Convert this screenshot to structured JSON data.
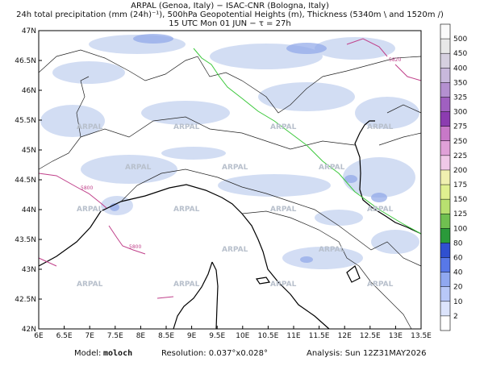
{
  "header": {
    "lines": [
      "ARPAL (Genoa, Italy)  −  ISAC-CNR (Bologna, Italy)",
      "24h total precipitation (mm (24h)⁻¹), 500hPa Geopotential Heights (m), Thickness (5340m \\ and 1520m /)",
      "15 UTC Mon 01 JUN  −  τ = 27h"
    ]
  },
  "axes": {
    "lon": [
      {
        "value": 6,
        "label": "6E"
      },
      {
        "value": 6.5,
        "label": "6.5E"
      },
      {
        "value": 7,
        "label": "7E"
      },
      {
        "value": 7.5,
        "label": "7.5E"
      },
      {
        "value": 8,
        "label": "8E"
      },
      {
        "value": 8.5,
        "label": "8.5E"
      },
      {
        "value": 9,
        "label": "9E"
      },
      {
        "value": 9.5,
        "label": "9.5E"
      },
      {
        "value": 10,
        "label": "10E"
      },
      {
        "value": 10.5,
        "label": "10.5E"
      },
      {
        "value": 11,
        "label": "11E"
      },
      {
        "value": 11.5,
        "label": "11.5E"
      },
      {
        "value": 12,
        "label": "12E"
      },
      {
        "value": 12.5,
        "label": "12.5E"
      },
      {
        "value": 13,
        "label": "13E"
      },
      {
        "value": 13.5,
        "label": "13.5E"
      }
    ],
    "lat": [
      {
        "value": 47,
        "label": "47N"
      },
      {
        "value": 46.5,
        "label": "46.5N"
      },
      {
        "value": 46,
        "label": "46N"
      },
      {
        "value": 45.5,
        "label": "45.5N"
      },
      {
        "value": 45,
        "label": "45N"
      },
      {
        "value": 44.5,
        "label": "44.5N"
      },
      {
        "value": 44,
        "label": "44N"
      },
      {
        "value": 43.5,
        "label": "43.5N"
      },
      {
        "value": 43,
        "label": "43N"
      },
      {
        "value": 42.5,
        "label": "42.5N"
      },
      {
        "value": 42,
        "label": "42N"
      }
    ]
  },
  "colorbar": {
    "levels": [
      500,
      450,
      400,
      350,
      325,
      300,
      275,
      250,
      225,
      200,
      175,
      150,
      125,
      100,
      80,
      60,
      40,
      20,
      10,
      2
    ],
    "colors": [
      "#fafafa",
      "#e8e8e8",
      "#d6d0e0",
      "#c8b8dc",
      "#b490d0",
      "#a060c0",
      "#8c3cb0",
      "#c878c8",
      "#e0a0d8",
      "#f0c8e8",
      "#f0f0b0",
      "#e0f090",
      "#b8e070",
      "#70c050",
      "#2a9a3a",
      "#3050d0",
      "#5878e8",
      "#90a8f0",
      "#b8c8f8",
      "#dce4fc",
      "#ffffff"
    ]
  },
  "watermark": "ARPAL",
  "contour_labels": [
    "5800",
    "5820"
  ],
  "footer": {
    "model_label": "Model:",
    "model": "moloch",
    "resolution": "Resolution: 0.037°x0.028°",
    "analysis": "Analysis: Sun 12Z31MAY2026"
  }
}
